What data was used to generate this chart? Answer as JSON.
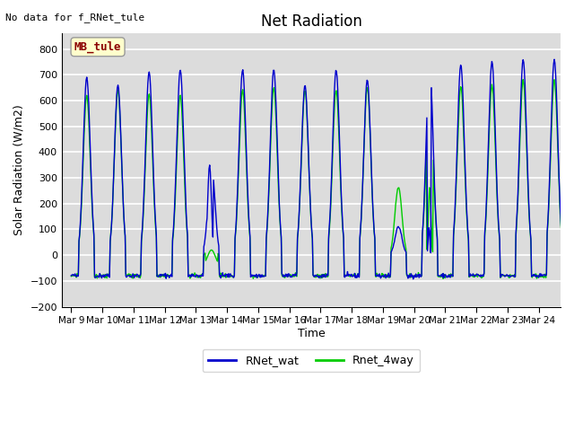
{
  "title": "Net Radiation",
  "ylabel": "Solar Radiation (W/m2)",
  "xlabel": "Time",
  "top_left_text": "No data for f_RNet_tule",
  "legend_box_text": "MB_tule",
  "ylim": [
    -200,
    860
  ],
  "yticks": [
    -200,
    -100,
    0,
    100,
    200,
    300,
    400,
    500,
    600,
    700,
    800
  ],
  "xtick_labels": [
    "Mar 9",
    "Mar 10",
    "Mar 11",
    "Mar 12",
    "Mar 13",
    "Mar 14",
    "Mar 15",
    "Mar 16",
    "Mar 17",
    "Mar 18",
    "Mar 19",
    "Mar 20",
    "Mar 21",
    "Mar 22",
    "Mar 23",
    "Mar 24"
  ],
  "line1_color": "#0000cc",
  "line2_color": "#00cc00",
  "line1_label": "RNet_wat",
  "line2_label": "Rnet_4way",
  "background_color": "#dcdcdc",
  "grid_color": "white",
  "n_days": 16,
  "night_value": -80,
  "day_peaks1": [
    690,
    660,
    710,
    720,
    350,
    720,
    720,
    660,
    720,
    680,
    110,
    740,
    740,
    750,
    760,
    760
  ],
  "day_peaks2": [
    620,
    640,
    625,
    620,
    40,
    640,
    650,
    640,
    640,
    650,
    265,
    660,
    655,
    660,
    680,
    680
  ],
  "rise_hour": 6,
  "set_hour": 18
}
